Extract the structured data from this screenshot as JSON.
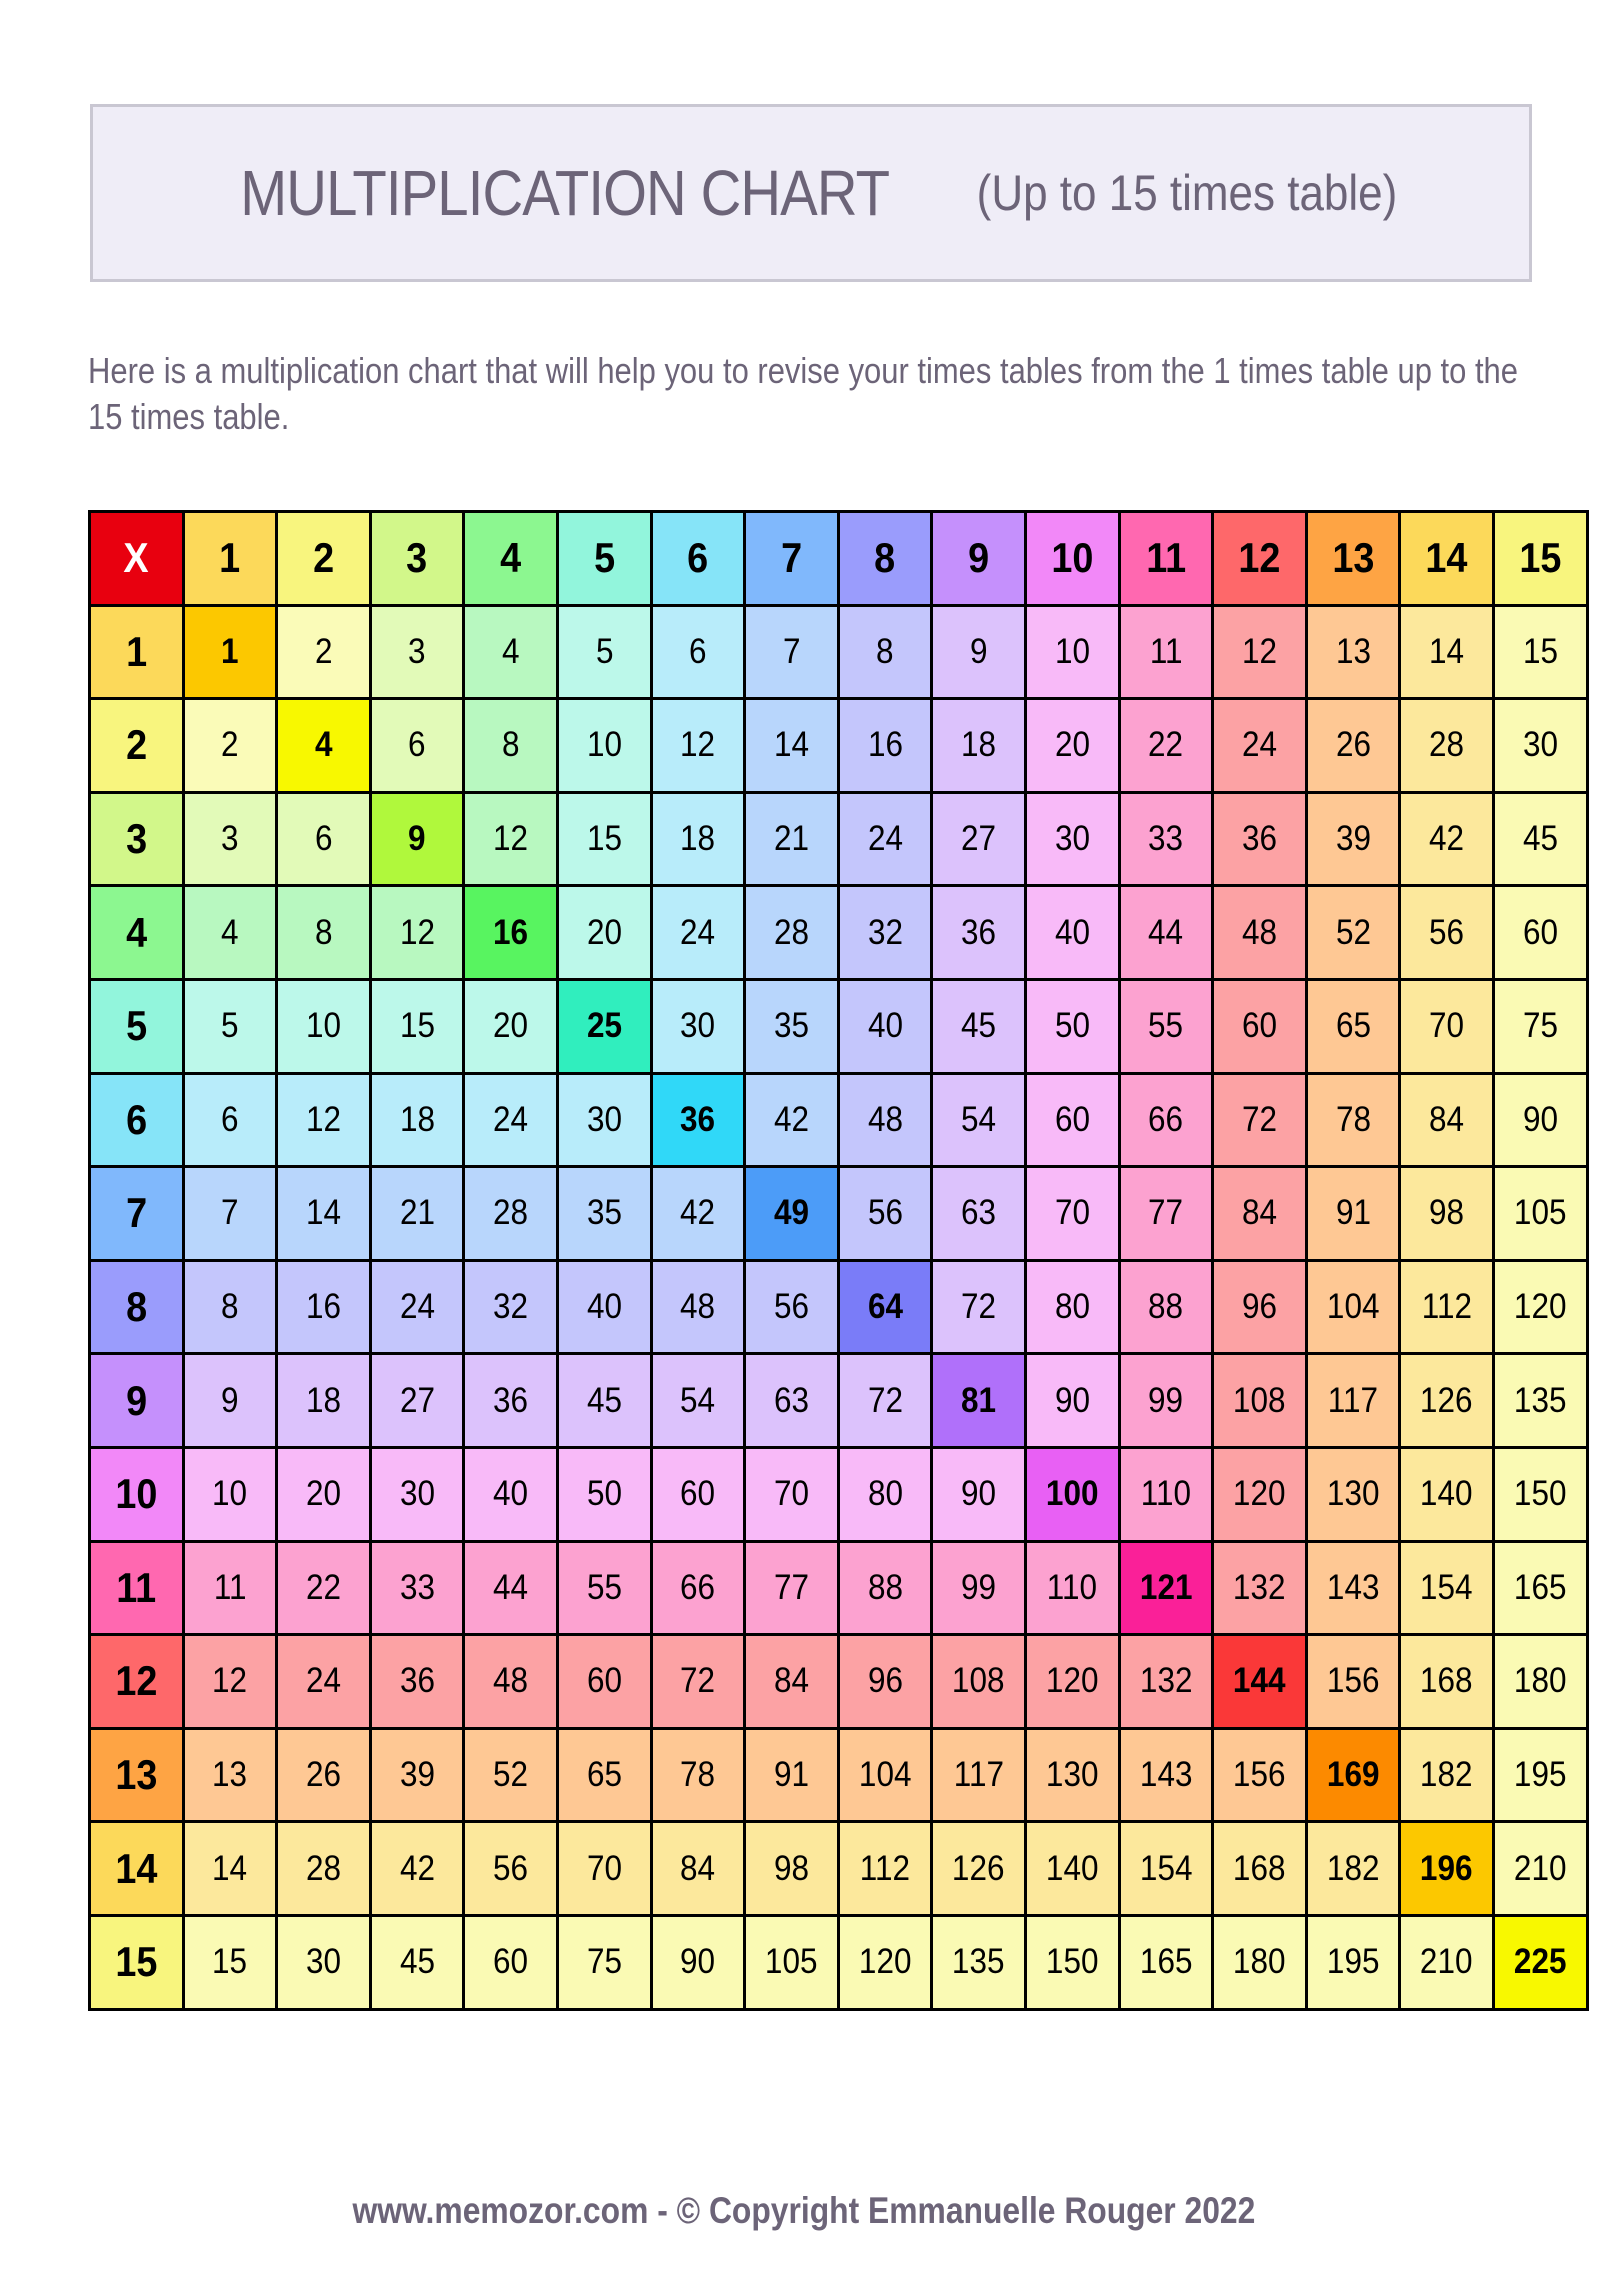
{
  "title": {
    "main": "MULTIPLICATION CHART",
    "sub": "(Up to 15 times table)"
  },
  "intro": "Here is a multiplication chart that will help you to revise your times tables from the 1 times table up to the 15 times table.",
  "chart_data": {
    "type": "table",
    "corner": "X",
    "headers": [
      "1",
      "2",
      "3",
      "4",
      "5",
      "6",
      "7",
      "8",
      "9",
      "10",
      "11",
      "12",
      "13",
      "14",
      "15"
    ],
    "rows": [
      [
        1,
        2,
        3,
        4,
        5,
        6,
        7,
        8,
        9,
        10,
        11,
        12,
        13,
        14,
        15
      ],
      [
        2,
        4,
        6,
        8,
        10,
        12,
        14,
        16,
        18,
        20,
        22,
        24,
        26,
        28,
        30
      ],
      [
        3,
        6,
        9,
        12,
        15,
        18,
        21,
        24,
        27,
        30,
        33,
        36,
        39,
        42,
        45
      ],
      [
        4,
        8,
        12,
        16,
        20,
        24,
        28,
        32,
        36,
        40,
        44,
        48,
        52,
        56,
        60
      ],
      [
        5,
        10,
        15,
        20,
        25,
        30,
        35,
        40,
        45,
        50,
        55,
        60,
        65,
        70,
        75
      ],
      [
        6,
        12,
        18,
        24,
        30,
        36,
        42,
        48,
        54,
        60,
        66,
        72,
        78,
        84,
        90
      ],
      [
        7,
        14,
        21,
        28,
        35,
        42,
        49,
        56,
        63,
        70,
        77,
        84,
        91,
        98,
        105
      ],
      [
        8,
        16,
        24,
        32,
        40,
        48,
        56,
        64,
        72,
        80,
        88,
        96,
        104,
        112,
        120
      ],
      [
        9,
        18,
        27,
        36,
        45,
        54,
        63,
        72,
        81,
        90,
        99,
        108,
        117,
        126,
        135
      ],
      [
        10,
        20,
        30,
        40,
        50,
        60,
        70,
        80,
        90,
        100,
        110,
        120,
        130,
        140,
        150
      ],
      [
        11,
        22,
        33,
        44,
        55,
        66,
        77,
        88,
        99,
        110,
        121,
        132,
        143,
        154,
        165
      ],
      [
        12,
        24,
        36,
        48,
        60,
        72,
        84,
        96,
        108,
        120,
        132,
        144,
        156,
        168,
        180
      ],
      [
        13,
        26,
        39,
        52,
        65,
        78,
        91,
        104,
        117,
        130,
        143,
        156,
        169,
        182,
        195
      ],
      [
        14,
        28,
        42,
        56,
        70,
        84,
        98,
        112,
        126,
        140,
        154,
        168,
        182,
        196,
        210
      ],
      [
        15,
        30,
        45,
        60,
        75,
        90,
        105,
        120,
        135,
        150,
        165,
        180,
        195,
        210,
        225
      ]
    ]
  },
  "colors": {
    "corner": "#e8000f",
    "header": [
      "#fcd95a",
      "#f8f57e",
      "#d2f78a",
      "#8cf790",
      "#92f5dc",
      "#86e4f8",
      "#80b8fc",
      "#9a9cfc",
      "#c590fc",
      "#f288f8",
      "#ff68b0",
      "#fe686a",
      "#fea444",
      "#fcd95a",
      "#f8f57e"
    ],
    "light": [
      "#fde39a",
      "#fafbb8",
      "#e2fab8",
      "#b8f8c0",
      "#bcf8ea",
      "#b8ecfa",
      "#b8d6fc",
      "#c4c6fc",
      "#dcc2fc",
      "#f8baf8",
      "#fca2d0",
      "#fca2a4",
      "#fec894",
      "#fce89c",
      "#fafab4"
    ],
    "diagonal": [
      "#fcc800",
      "#f8f800",
      "#b0f83c",
      "#58f460",
      "#30eebe",
      "#30d8f8",
      "#4c9cf8",
      "#7a7cf8",
      "#b070fa",
      "#e860f4",
      "#fa2098",
      "#fa3838",
      "#fc8a00",
      "#fcc800",
      "#f8f800"
    ]
  },
  "footer": {
    "site": "www.memozor.com",
    "separator": " - ",
    "copyright": "© Copyright Emmanuelle Rouger 2022"
  }
}
